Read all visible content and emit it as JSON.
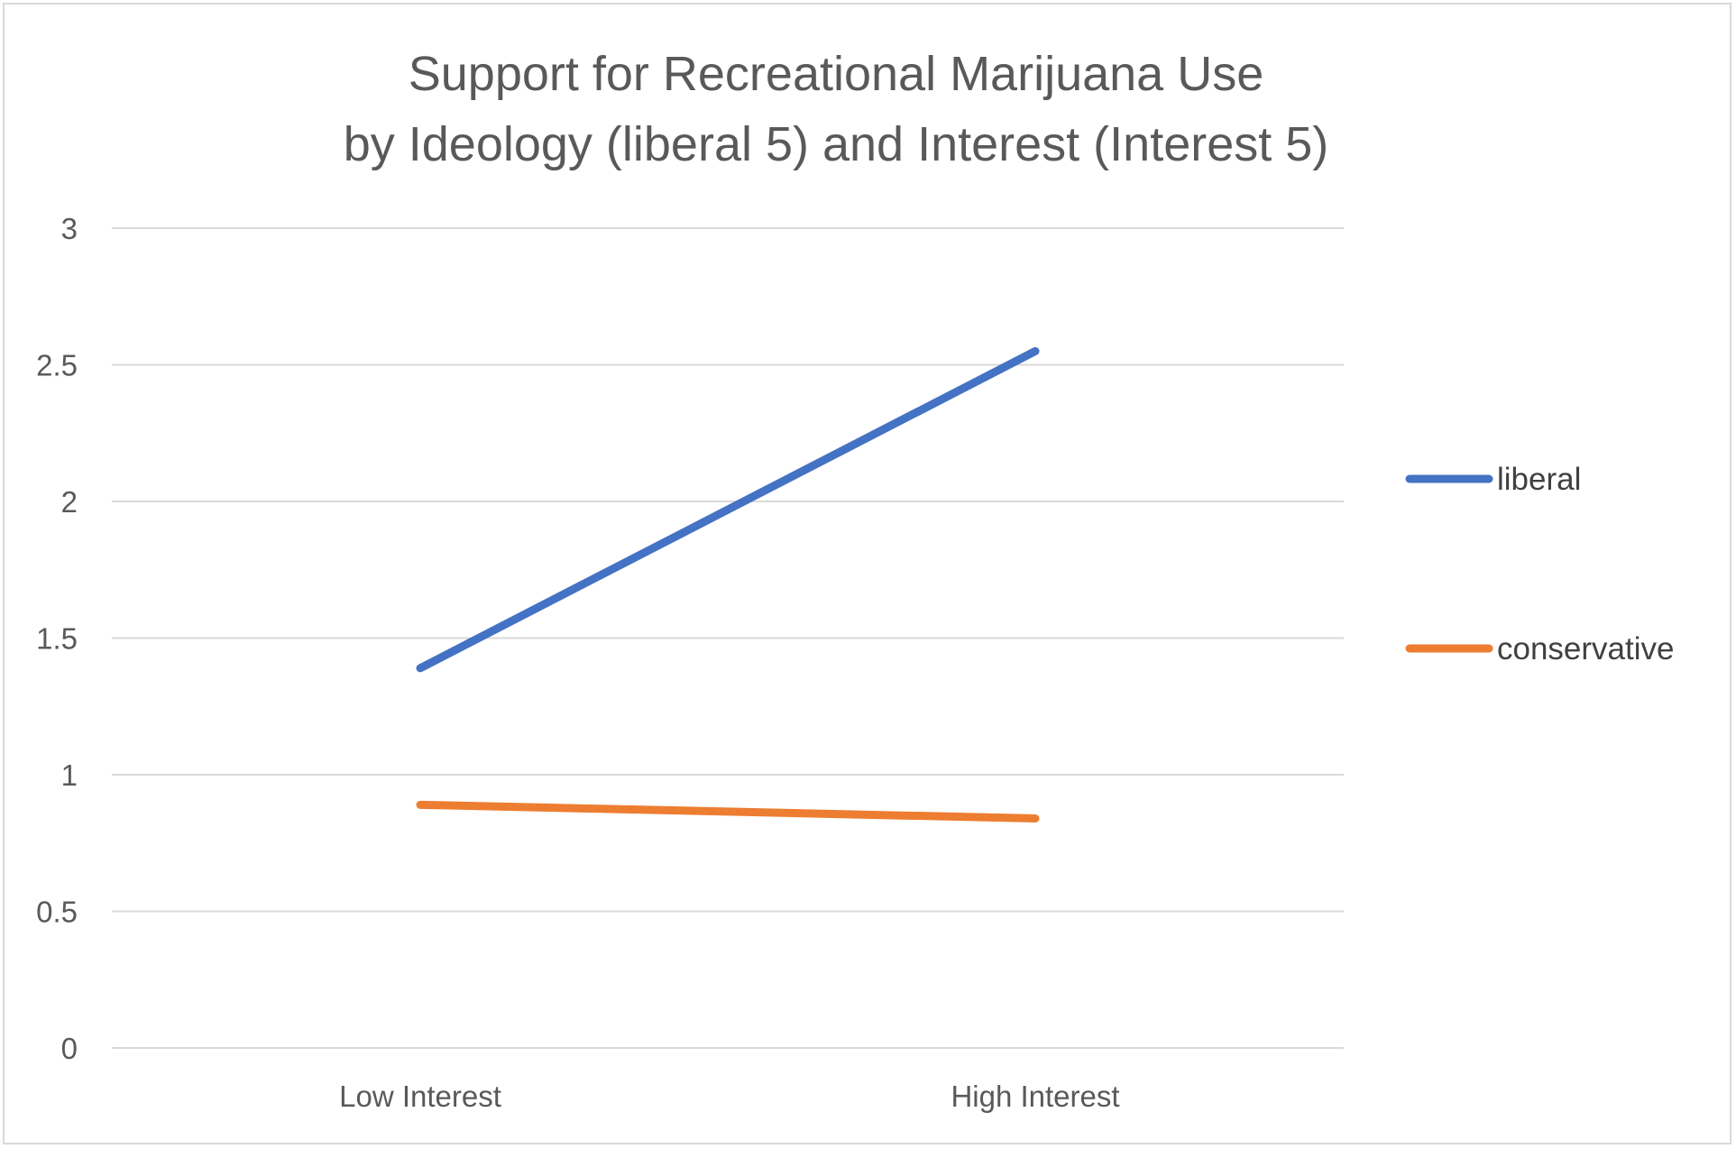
{
  "chart_data": {
    "type": "line",
    "title": [
      "Support for Recreational Marijuana Use",
      "by Ideology (liberal 5) and Interest (Interest 5)"
    ],
    "xlabel": "",
    "ylabel": "",
    "categories": [
      "Low Interest",
      "High Interest"
    ],
    "ylim": [
      0,
      3
    ],
    "yticks": [
      0,
      0.5,
      1,
      1.5,
      2,
      2.5,
      3
    ],
    "grid": true,
    "legend_position": "right",
    "series": [
      {
        "name": "liberal",
        "values": [
          1.39,
          2.55
        ],
        "color": "#4472C4"
      },
      {
        "name": "conservative",
        "values": [
          0.89,
          0.84
        ],
        "color": "#ED7D31"
      }
    ]
  }
}
